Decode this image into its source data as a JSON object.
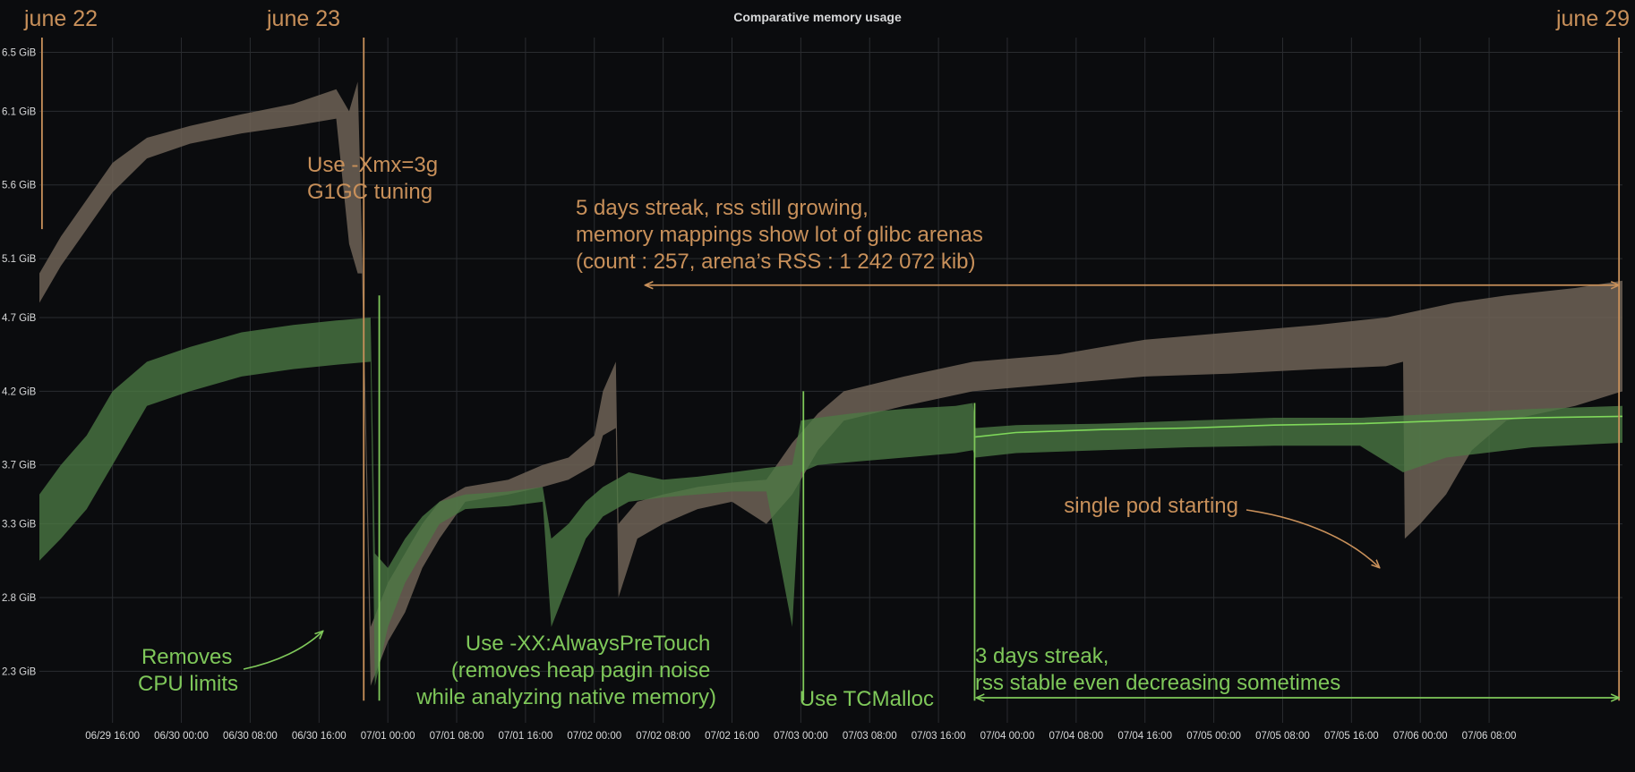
{
  "chart_data": {
    "type": "area",
    "title": "Comparative memory usage",
    "x_ticks": [
      "06/29 16:00",
      "06/30 00:00",
      "06/30 08:00",
      "06/30 16:00",
      "07/01 00:00",
      "07/01 08:00",
      "07/01 16:00",
      "07/02 00:00",
      "07/02 08:00",
      "07/02 16:00",
      "07/03 00:00",
      "07/03 08:00",
      "07/03 16:00",
      "07/04 00:00",
      "07/04 08:00",
      "07/04 16:00",
      "07/05 00:00",
      "07/05 08:00",
      "07/05 16:00",
      "07/06 00:00",
      "07/06 08:00"
    ],
    "y_ticks": [
      "6.5 GiB",
      "6.1 GiB",
      "5.6 GiB",
      "5.1 GiB",
      "4.7 GiB",
      "4.2 GiB",
      "3.7 GiB",
      "3.3 GiB",
      "2.8 GiB",
      "2.3 GiB"
    ],
    "x_range_hours": [
      -8.5,
      175.5
    ],
    "y_range_gib": [
      1.95,
      6.6
    ],
    "grid": true,
    "colors": {
      "rss_band": "#6e6356",
      "tcmalloc_band": "#4c7a44",
      "green_line": "#7fd85a",
      "annotation_orange": "#c8905a",
      "annotation_green": "#7fc85a"
    },
    "series": [
      {
        "color": "#6e6356",
        "upper": [
          [
            -8.5,
            5.0
          ],
          [
            -6,
            5.25
          ],
          [
            -3,
            5.5
          ],
          [
            0,
            5.75
          ],
          [
            4,
            5.92
          ],
          [
            9,
            6.0
          ],
          [
            15,
            6.08
          ],
          [
            21,
            6.15
          ],
          [
            26,
            6.25
          ],
          [
            27.5,
            6.1
          ],
          [
            28.5,
            6.3
          ],
          [
            29,
            5.2
          ],
          [
            30,
            2.6
          ],
          [
            32,
            2.9
          ],
          [
            34,
            3.1
          ],
          [
            36,
            3.3
          ],
          [
            38,
            3.45
          ],
          [
            41,
            3.55
          ],
          [
            46,
            3.6
          ],
          [
            50,
            3.7
          ],
          [
            53,
            3.75
          ],
          [
            56,
            3.9
          ],
          [
            57,
            4.2
          ],
          [
            58.5,
            4.4
          ],
          [
            58.8,
            3.3
          ],
          [
            61,
            3.45
          ],
          [
            64,
            3.5
          ],
          [
            68,
            3.55
          ],
          [
            72,
            3.58
          ],
          [
            76,
            3.6
          ],
          [
            79,
            3.85
          ],
          [
            82,
            4.05
          ],
          [
            85,
            4.2
          ],
          [
            92,
            4.3
          ],
          [
            100,
            4.4
          ],
          [
            110,
            4.45
          ],
          [
            120,
            4.55
          ],
          [
            130,
            4.6
          ],
          [
            140,
            4.65
          ],
          [
            148,
            4.7
          ],
          [
            156,
            4.8
          ],
          [
            162,
            4.85
          ],
          [
            170,
            4.9
          ],
          [
            175.5,
            4.95
          ]
        ],
        "lower": [
          [
            -8.5,
            4.8
          ],
          [
            -6,
            5.05
          ],
          [
            -3,
            5.3
          ],
          [
            0,
            5.55
          ],
          [
            4,
            5.78
          ],
          [
            9,
            5.88
          ],
          [
            15,
            5.95
          ],
          [
            21,
            6.0
          ],
          [
            26,
            6.05
          ],
          [
            27.5,
            5.2
          ],
          [
            28.5,
            5.0
          ],
          [
            29,
            5.0
          ],
          [
            30,
            2.2
          ],
          [
            32,
            2.5
          ],
          [
            34,
            2.7
          ],
          [
            36,
            3.0
          ],
          [
            38,
            3.2
          ],
          [
            41,
            3.45
          ],
          [
            46,
            3.5
          ],
          [
            50,
            3.55
          ],
          [
            53,
            3.6
          ],
          [
            56,
            3.7
          ],
          [
            57,
            3.9
          ],
          [
            58.5,
            3.95
          ],
          [
            58.8,
            2.8
          ],
          [
            61,
            3.2
          ],
          [
            64,
            3.3
          ],
          [
            68,
            3.4
          ],
          [
            72,
            3.45
          ],
          [
            76,
            3.3
          ],
          [
            79,
            3.5
          ],
          [
            82,
            3.8
          ],
          [
            85,
            4.0
          ],
          [
            92,
            4.1
          ],
          [
            100,
            4.2
          ],
          [
            110,
            4.25
          ],
          [
            120,
            4.3
          ],
          [
            130,
            4.32
          ],
          [
            140,
            4.35
          ],
          [
            148,
            4.37
          ],
          [
            150,
            4.4
          ],
          [
            150.2,
            3.2
          ],
          [
            152,
            3.3
          ],
          [
            155,
            3.5
          ],
          [
            158,
            3.8
          ],
          [
            162,
            4.0
          ],
          [
            170,
            4.1
          ],
          [
            175.5,
            4.2
          ]
        ]
      },
      {
        "color": "#4c7a44",
        "upper": [
          [
            -8.5,
            3.5
          ],
          [
            -6,
            3.7
          ],
          [
            -3,
            3.9
          ],
          [
            0,
            4.2
          ],
          [
            4,
            4.4
          ],
          [
            9,
            4.5
          ],
          [
            15,
            4.6
          ],
          [
            21,
            4.65
          ],
          [
            26,
            4.68
          ],
          [
            30,
            4.7
          ],
          [
            30.5,
            3.1
          ],
          [
            32,
            3.0
          ],
          [
            34,
            3.2
          ],
          [
            36,
            3.35
          ],
          [
            38,
            3.45
          ],
          [
            41,
            3.5
          ],
          [
            46,
            3.52
          ],
          [
            50,
            3.55
          ],
          [
            51,
            3.2
          ],
          [
            53,
            3.3
          ],
          [
            55,
            3.45
          ],
          [
            57,
            3.55
          ],
          [
            60,
            3.65
          ],
          [
            64,
            3.6
          ],
          [
            68,
            3.62
          ],
          [
            72,
            3.65
          ],
          [
            76,
            3.68
          ],
          [
            79,
            3.7
          ],
          [
            80,
            4.0
          ],
          [
            82,
            4.02
          ],
          [
            86,
            4.05
          ],
          [
            92,
            4.08
          ],
          [
            98,
            4.1
          ],
          [
            100,
            4.12
          ],
          [
            100.3,
            3.95
          ],
          [
            105,
            3.97
          ],
          [
            115,
            3.98
          ],
          [
            125,
            4.0
          ],
          [
            135,
            4.02
          ],
          [
            145,
            4.02
          ],
          [
            155,
            4.05
          ],
          [
            165,
            4.08
          ],
          [
            175.5,
            4.1
          ]
        ],
        "lower": [
          [
            -8.5,
            3.05
          ],
          [
            -6,
            3.2
          ],
          [
            -3,
            3.4
          ],
          [
            0,
            3.7
          ],
          [
            4,
            4.1
          ],
          [
            9,
            4.2
          ],
          [
            15,
            4.3
          ],
          [
            21,
            4.35
          ],
          [
            26,
            4.38
          ],
          [
            30,
            4.4
          ],
          [
            30.5,
            2.2
          ],
          [
            32,
            2.6
          ],
          [
            34,
            2.9
          ],
          [
            36,
            3.1
          ],
          [
            38,
            3.3
          ],
          [
            41,
            3.4
          ],
          [
            46,
            3.42
          ],
          [
            50,
            3.45
          ],
          [
            51,
            2.6
          ],
          [
            53,
            2.9
          ],
          [
            55,
            3.2
          ],
          [
            57,
            3.35
          ],
          [
            60,
            3.45
          ],
          [
            64,
            3.48
          ],
          [
            68,
            3.5
          ],
          [
            72,
            3.52
          ],
          [
            76,
            3.52
          ],
          [
            79,
            2.6
          ],
          [
            80,
            3.65
          ],
          [
            82,
            3.7
          ],
          [
            86,
            3.72
          ],
          [
            92,
            3.75
          ],
          [
            98,
            3.78
          ],
          [
            100,
            3.8
          ],
          [
            100.3,
            3.75
          ],
          [
            105,
            3.78
          ],
          [
            115,
            3.8
          ],
          [
            125,
            3.82
          ],
          [
            135,
            3.83
          ],
          [
            145,
            3.83
          ],
          [
            150,
            3.65
          ],
          [
            155,
            3.75
          ],
          [
            165,
            3.82
          ],
          [
            175.5,
            3.85
          ]
        ]
      },
      {
        "color": "#7fd85a",
        "points": [
          [
            100.3,
            3.89
          ],
          [
            105,
            3.92
          ],
          [
            115,
            3.94
          ],
          [
            125,
            3.95
          ],
          [
            135,
            3.97
          ],
          [
            145,
            3.98
          ],
          [
            155,
            4.0
          ],
          [
            165,
            4.02
          ],
          [
            175.5,
            4.03
          ]
        ]
      }
    ],
    "vertical_markers": [
      {
        "x": -8.2,
        "y_from": 5.3,
        "y_to": 6.6,
        "color": "#c8905a"
      },
      {
        "x": 29.2,
        "y_from": 2.1,
        "y_to": 6.6,
        "color": "#c8905a"
      },
      {
        "x": 175.1,
        "y_from": 2.1,
        "y_to": 6.6,
        "color": "#c8905a"
      },
      {
        "x": 31.0,
        "y_from": 2.1,
        "y_to": 4.85,
        "color": "#7fc85a"
      },
      {
        "x": 80.3,
        "y_from": 2.1,
        "y_to": 4.2,
        "color": "#7fc85a"
      },
      {
        "x": 100.2,
        "y_from": 2.1,
        "y_to": 4.12,
        "color": "#7fc85a"
      }
    ],
    "range_arrows": [
      {
        "x_from": 62,
        "x_to": 175.0,
        "y": 4.92,
        "color": "#c8905a"
      },
      {
        "x_from": 100.5,
        "x_to": 175.0,
        "y": 2.12,
        "color": "#7fc85a"
      }
    ],
    "annotations": [
      {
        "color": "orange",
        "lines": [
          "june 22"
        ]
      },
      {
        "color": "orange",
        "lines": [
          "june 23"
        ]
      },
      {
        "color": "orange",
        "lines": [
          "june 29"
        ]
      },
      {
        "color": "orange",
        "lines": [
          "Use -Xmx=3g",
          "G1GC tuning"
        ]
      },
      {
        "color": "orange",
        "lines": [
          "5 days streak, rss still growing,",
          "memory mappings show lot of glibc arenas",
          "(count : 257, arena’s RSS : 1 242 072 kib)"
        ]
      },
      {
        "color": "orange",
        "lines": [
          "single pod starting"
        ]
      },
      {
        "color": "green",
        "lines": [
          "Removes",
          "CPU limits"
        ]
      },
      {
        "color": "green",
        "lines": [
          "Use -XX:AlwaysPreTouch",
          "(removes heap pagin noise",
          "while analyzing native memory)"
        ]
      },
      {
        "color": "green",
        "lines": [
          "Use TCMalloc"
        ]
      },
      {
        "color": "green",
        "lines": [
          "3 days streak,",
          "rss stable even decreasing sometimes"
        ]
      }
    ]
  }
}
